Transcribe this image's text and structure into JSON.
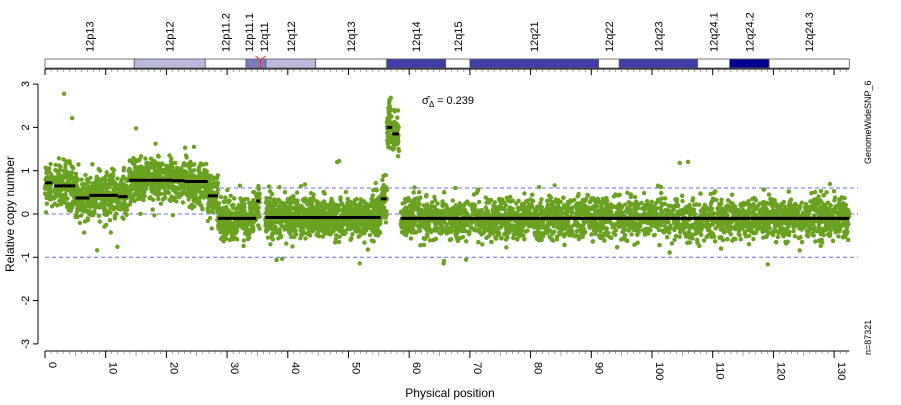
{
  "chart_data": {
    "type": "scatter",
    "xlabel": "Physical position",
    "ylabel": "Relative copy number",
    "xlim": [
      0,
      132.5
    ],
    "ylim": [
      -3,
      3
    ],
    "x_ticks": [
      0,
      10,
      20,
      30,
      40,
      50,
      60,
      70,
      80,
      90,
      100,
      110,
      120,
      130
    ],
    "y_ticks": [
      -3,
      -2,
      -1,
      0,
      1,
      2,
      3
    ],
    "reference_lines": [
      0.6,
      0,
      -1
    ],
    "annotation": {
      "sigma_label": "σ̂",
      "sigma_sub": "Δ",
      "sigma_value": "= 0.239"
    },
    "platform_label": "GenomeWideSNP_6",
    "n_label": "n=87321",
    "point_color": "#6aa121",
    "segment_color": "#000000",
    "reference_line_color": "#6a6ae0",
    "segments": [
      {
        "start": 0,
        "end": 1.2,
        "value": 0.72
      },
      {
        "start": 1.5,
        "end": 5,
        "value": 0.65
      },
      {
        "start": 5,
        "end": 7.3,
        "value": 0.37
      },
      {
        "start": 7.3,
        "end": 12,
        "value": 0.43
      },
      {
        "start": 12,
        "end": 13.6,
        "value": 0.4
      },
      {
        "start": 13.8,
        "end": 21,
        "value": 0.78
      },
      {
        "start": 21,
        "end": 23,
        "value": 0.77
      },
      {
        "start": 23,
        "end": 26.8,
        "value": 0.75
      },
      {
        "start": 26.8,
        "end": 28.5,
        "value": 0.42
      },
      {
        "start": 28.5,
        "end": 34.8,
        "value": -0.1
      },
      {
        "start": 34.8,
        "end": 35.4,
        "value": 0.3
      },
      {
        "start": 36.3,
        "end": 55.3,
        "value": -0.08
      },
      {
        "start": 55.3,
        "end": 56.3,
        "value": 0.35
      },
      {
        "start": 56.3,
        "end": 57.2,
        "value": 2.0
      },
      {
        "start": 57.2,
        "end": 58.3,
        "value": 1.85
      },
      {
        "start": 58.6,
        "end": 132.5,
        "value": -0.1
      }
    ],
    "cytobands": [
      {
        "name": "12p13",
        "start": 0,
        "end": 14.7,
        "stain": "#ffffff"
      },
      {
        "name": "12p12",
        "start": 14.7,
        "end": 26.4,
        "stain": "#babade"
      },
      {
        "name": "12p11.2",
        "start": 26.4,
        "end": 33.1,
        "stain": "#ffffff"
      },
      {
        "name": "12p11.1",
        "start": 33.1,
        "end": 35.5,
        "stain": "#7b7bc4"
      },
      {
        "name": "12q11",
        "start": 35.5,
        "end": 36.4,
        "stain": "#7b7bc4"
      },
      {
        "name": "12q12",
        "start": 36.4,
        "end": 44.6,
        "stain": "#babade"
      },
      {
        "name": "12q13",
        "start": 44.6,
        "end": 56.3,
        "stain": "#ffffff"
      },
      {
        "name": "12q14",
        "start": 56.3,
        "end": 66.0,
        "stain": "#3e3ea8"
      },
      {
        "name": "12q15",
        "start": 66.0,
        "end": 70.0,
        "stain": "#ffffff"
      },
      {
        "name": "12q21",
        "start": 70.0,
        "end": 91.2,
        "stain": "#3e3ea8"
      },
      {
        "name": "12q22",
        "start": 91.2,
        "end": 94.6,
        "stain": "#ffffff"
      },
      {
        "name": "12q23",
        "start": 94.6,
        "end": 107.5,
        "stain": "#3e3ea8"
      },
      {
        "name": "12q24.1",
        "start": 107.5,
        "end": 112.8,
        "stain": "#ffffff"
      },
      {
        "name": "12q24.2",
        "start": 112.8,
        "end": 119.3,
        "stain": "#000090"
      },
      {
        "name": "12q24.3",
        "start": 119.3,
        "end": 132.5,
        "stain": "#ffffff"
      }
    ],
    "centromere": 35.5
  }
}
